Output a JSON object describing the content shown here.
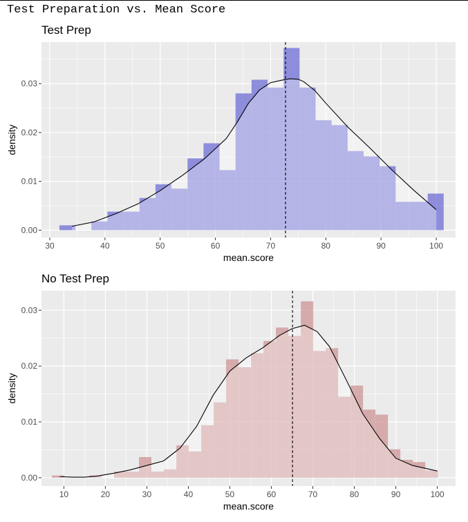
{
  "title": "Test Preparation vs. Mean Score",
  "colors": {
    "panel_bg": "#EBEBEB",
    "grid": "#FFFFFF",
    "axis_text": "#4D4D4D",
    "test_prep_fill": "#6E6ED6",
    "no_test_prep_fill": "#CD9494",
    "density_line": "#000000",
    "mean_line": "#000000"
  },
  "chart_data": [
    {
      "type": "bar",
      "title": "Test Prep",
      "xlabel": "mean.score",
      "ylabel": "density",
      "xlim": [
        28.5,
        103.5
      ],
      "ylim": [
        -0.0015,
        0.0385
      ],
      "xticks": [
        30,
        40,
        50,
        60,
        70,
        80,
        90,
        100
      ],
      "yticks": [
        0,
        0.01,
        0.02,
        0.03
      ],
      "ytick_labels": [
        "0.00",
        "0.01",
        "0.02",
        "0.03"
      ],
      "grid": true,
      "mean_line_x": 72.7,
      "histogram": {
        "bin_width": 2.9,
        "bins": [
          {
            "x": 33.2,
            "y": 0.001
          },
          {
            "x": 36.1,
            "y": 0.0
          },
          {
            "x": 39.0,
            "y": 0.0018
          },
          {
            "x": 41.9,
            "y": 0.0038
          },
          {
            "x": 44.8,
            "y": 0.0038
          },
          {
            "x": 47.7,
            "y": 0.0066
          },
          {
            "x": 50.6,
            "y": 0.0094
          },
          {
            "x": 53.5,
            "y": 0.0085
          },
          {
            "x": 56.4,
            "y": 0.0147
          },
          {
            "x": 59.3,
            "y": 0.0178
          },
          {
            "x": 62.2,
            "y": 0.0123
          },
          {
            "x": 65.1,
            "y": 0.028
          },
          {
            "x": 68.0,
            "y": 0.0308
          },
          {
            "x": 70.9,
            "y": 0.0292
          },
          {
            "x": 73.8,
            "y": 0.0373
          },
          {
            "x": 76.7,
            "y": 0.0292
          },
          {
            "x": 79.6,
            "y": 0.0225
          },
          {
            "x": 82.5,
            "y": 0.0215
          },
          {
            "x": 85.4,
            "y": 0.0162
          },
          {
            "x": 88.3,
            "y": 0.0151
          },
          {
            "x": 91.2,
            "y": 0.0131
          },
          {
            "x": 94.1,
            "y": 0.0058
          },
          {
            "x": 97.0,
            "y": 0.0058
          },
          {
            "x": 99.9,
            "y": 0.0075
          }
        ]
      },
      "density": {
        "x": [
          34,
          38,
          42,
          46,
          50,
          54,
          58,
          62,
          64,
          66,
          68,
          70,
          72,
          73.5,
          75,
          76,
          78,
          80,
          84,
          88,
          92,
          96,
          100
        ],
        "y": [
          0.0008,
          0.0017,
          0.0034,
          0.0054,
          0.0081,
          0.0112,
          0.0146,
          0.0188,
          0.0222,
          0.026,
          0.0287,
          0.0302,
          0.0307,
          0.031,
          0.0309,
          0.0304,
          0.0286,
          0.026,
          0.0211,
          0.0168,
          0.0123,
          0.0081,
          0.0042
        ]
      }
    },
    {
      "type": "bar",
      "title": "No Test Prep",
      "xlabel": "mean.score",
      "ylabel": "density",
      "xlim": [
        4.6,
        104.4
      ],
      "ylim": [
        -0.0015,
        0.0335
      ],
      "xticks": [
        10,
        20,
        30,
        40,
        50,
        60,
        70,
        80,
        90,
        100
      ],
      "yticks": [
        0,
        0.01,
        0.02,
        0.03
      ],
      "ytick_labels": [
        "0.00",
        "0.01",
        "0.02",
        "0.03"
      ],
      "grid": true,
      "mean_line_x": 65.1,
      "histogram": {
        "bin_width": 3.0,
        "bins": [
          {
            "x": 8.6,
            "y": 0.0004
          },
          {
            "x": 11.6,
            "y": 0.0
          },
          {
            "x": 14.6,
            "y": 0.0
          },
          {
            "x": 17.6,
            "y": 0.0004
          },
          {
            "x": 20.6,
            "y": 0.0
          },
          {
            "x": 23.6,
            "y": 0.0011
          },
          {
            "x": 26.6,
            "y": 0.0011
          },
          {
            "x": 29.6,
            "y": 0.0037
          },
          {
            "x": 32.6,
            "y": 0.0011
          },
          {
            "x": 35.6,
            "y": 0.0015
          },
          {
            "x": 38.6,
            "y": 0.0058
          },
          {
            "x": 41.6,
            "y": 0.0047
          },
          {
            "x": 44.6,
            "y": 0.0094
          },
          {
            "x": 47.6,
            "y": 0.0135
          },
          {
            "x": 50.6,
            "y": 0.0212
          },
          {
            "x": 53.6,
            "y": 0.0198
          },
          {
            "x": 56.6,
            "y": 0.0223
          },
          {
            "x": 59.6,
            "y": 0.0245
          },
          {
            "x": 62.6,
            "y": 0.0269
          },
          {
            "x": 65.6,
            "y": 0.0254
          },
          {
            "x": 68.6,
            "y": 0.0316
          },
          {
            "x": 71.6,
            "y": 0.0227
          },
          {
            "x": 74.6,
            "y": 0.0232
          },
          {
            "x": 77.6,
            "y": 0.0145
          },
          {
            "x": 80.6,
            "y": 0.0165
          },
          {
            "x": 83.6,
            "y": 0.0122
          },
          {
            "x": 86.6,
            "y": 0.0113
          },
          {
            "x": 89.6,
            "y": 0.0051
          },
          {
            "x": 92.6,
            "y": 0.0032
          },
          {
            "x": 95.6,
            "y": 0.0028
          },
          {
            "x": 98.6,
            "y": 0.0013
          }
        ]
      },
      "density": {
        "x": [
          9,
          12,
          15,
          18,
          22,
          26,
          30,
          34,
          38,
          42,
          46,
          50,
          54,
          58,
          62,
          65,
          68,
          71,
          74,
          78,
          82,
          86,
          90,
          94,
          100
        ],
        "y": [
          0.0002,
          0.0001,
          0.0001,
          0.0003,
          0.0008,
          0.0014,
          0.0022,
          0.003,
          0.0053,
          0.0092,
          0.0148,
          0.0191,
          0.0215,
          0.0233,
          0.0255,
          0.0267,
          0.0273,
          0.0262,
          0.0235,
          0.0176,
          0.0115,
          0.0071,
          0.0035,
          0.0022,
          0.0012
        ]
      }
    }
  ]
}
